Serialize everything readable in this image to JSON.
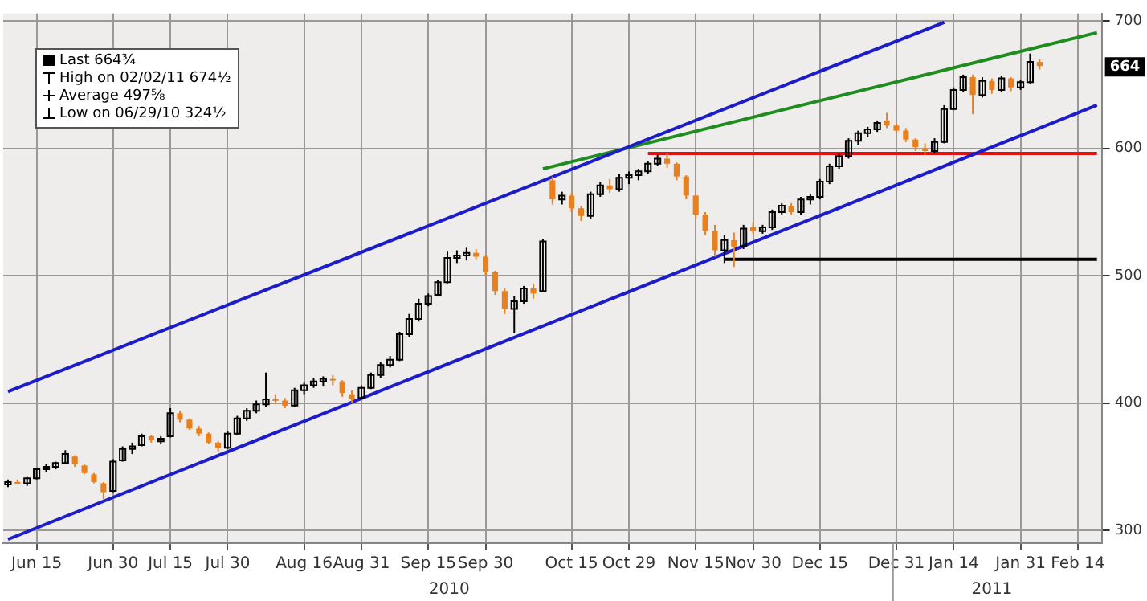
{
  "chart_data": {
    "type": "candlestick",
    "categories": [
      null,
      null,
      null,
      "Jun 15",
      null,
      null,
      null,
      null,
      null,
      null,
      null,
      "Jun 30",
      null,
      null,
      null,
      null,
      null,
      "Jul 15",
      null,
      null,
      null,
      null,
      null,
      "Jul 30",
      null,
      null,
      null,
      null,
      null,
      null,
      null,
      "Aug 16",
      null,
      null,
      null,
      null,
      null,
      "Aug 31",
      null,
      null,
      null,
      null,
      null,
      null,
      "Sep 15",
      null,
      null,
      null,
      null,
      null,
      "Sep 30",
      null,
      null,
      null,
      null,
      null,
      null,
      null,
      null,
      "Oct 15",
      null,
      null,
      null,
      null,
      null,
      "Oct 29",
      null,
      null,
      null,
      null,
      null,
      null,
      "Nov 15",
      null,
      null,
      null,
      null,
      null,
      "Nov 30",
      null,
      null,
      null,
      null,
      null,
      null,
      "Dec 15",
      null,
      null,
      null,
      null,
      null,
      null,
      null,
      "Dec 31",
      null,
      null,
      null,
      null,
      null,
      "Jan 14",
      null,
      null,
      null,
      null,
      null,
      null,
      "Jan 31",
      null,
      null,
      null,
      null,
      null,
      "Feb 14",
      null,
      null
    ],
    "ohlc": [
      [
        336,
        340,
        334,
        338
      ],
      [
        338,
        340,
        336,
        337
      ],
      [
        337,
        342,
        335,
        341
      ],
      [
        341,
        349,
        340,
        348
      ],
      [
        348,
        352,
        346,
        350
      ],
      [
        350,
        354,
        348,
        353
      ],
      [
        353,
        363,
        352,
        360
      ],
      [
        358,
        359,
        350,
        352
      ],
      [
        351,
        352,
        344,
        345
      ],
      [
        344,
        345,
        337,
        338
      ],
      [
        337,
        338,
        324.5,
        330
      ],
      [
        331,
        356,
        330,
        354
      ],
      [
        355,
        366,
        354,
        364
      ],
      [
        364,
        369,
        360,
        366
      ],
      [
        367,
        376,
        366,
        374
      ],
      [
        374,
        375,
        369,
        371
      ],
      [
        370,
        374,
        368,
        372
      ],
      [
        374,
        396,
        373,
        392
      ],
      [
        392,
        394,
        385,
        387
      ],
      [
        387,
        388,
        379,
        380
      ],
      [
        380,
        382,
        374,
        376
      ],
      [
        376,
        377,
        368,
        369
      ],
      [
        369,
        370,
        362,
        365
      ],
      [
        365,
        378,
        364,
        376
      ],
      [
        376,
        390,
        375,
        388
      ],
      [
        388,
        396,
        386,
        394
      ],
      [
        394,
        402,
        392,
        399
      ],
      [
        399,
        424,
        397,
        403
      ],
      [
        403,
        407,
        399,
        402
      ],
      [
        402,
        404,
        396,
        398
      ],
      [
        398,
        412,
        397,
        410
      ],
      [
        410,
        416,
        407,
        414
      ],
      [
        414,
        420,
        412,
        417
      ],
      [
        417,
        421,
        413,
        419
      ],
      [
        419,
        422,
        414,
        418
      ],
      [
        417,
        418,
        405,
        408
      ],
      [
        407,
        410,
        400,
        403
      ],
      [
        404,
        414,
        403,
        412
      ],
      [
        412,
        424,
        411,
        422
      ],
      [
        422,
        432,
        420,
        430
      ],
      [
        430,
        437,
        428,
        434
      ],
      [
        434,
        456,
        433,
        454
      ],
      [
        454,
        470,
        452,
        466
      ],
      [
        466,
        482,
        464,
        478
      ],
      [
        478,
        486,
        476,
        484
      ],
      [
        485,
        497,
        484,
        495
      ],
      [
        495,
        519,
        494,
        514
      ],
      [
        514,
        520,
        510,
        516
      ],
      [
        516,
        522,
        512,
        518
      ],
      [
        518,
        521,
        513,
        515
      ],
      [
        515,
        516,
        500,
        503
      ],
      [
        503,
        504,
        485,
        488
      ],
      [
        488,
        490,
        470,
        474
      ],
      [
        474,
        484,
        455,
        480
      ],
      [
        480,
        492,
        478,
        490
      ],
      [
        490,
        494,
        482,
        486
      ],
      [
        488,
        529,
        487,
        527
      ],
      [
        575,
        578,
        556,
        560
      ],
      [
        560,
        566,
        556,
        563
      ],
      [
        563,
        565,
        550,
        553
      ],
      [
        553,
        555,
        543,
        547
      ],
      [
        547,
        566,
        545,
        564
      ],
      [
        564,
        574,
        562,
        571
      ],
      [
        571,
        576,
        565,
        568
      ],
      [
        568,
        580,
        566,
        577
      ],
      [
        577,
        582,
        572,
        579
      ],
      [
        579,
        584,
        575,
        582
      ],
      [
        582,
        590,
        580,
        588
      ],
      [
        588,
        595,
        586,
        592
      ],
      [
        592,
        596,
        585,
        588
      ],
      [
        588,
        589,
        575,
        578
      ],
      [
        578,
        579,
        560,
        563
      ],
      [
        563,
        564,
        545,
        548
      ],
      [
        548,
        550,
        532,
        535
      ],
      [
        535,
        540,
        515,
        520
      ],
      [
        520,
        532,
        510,
        528
      ],
      [
        528,
        534,
        507,
        523
      ],
      [
        523,
        540,
        521,
        537
      ],
      [
        538,
        542,
        533,
        535
      ],
      [
        535,
        540,
        533,
        538
      ],
      [
        538,
        552,
        536,
        550
      ],
      [
        550,
        557,
        548,
        555
      ],
      [
        555,
        557,
        548,
        550
      ],
      [
        550,
        562,
        548,
        560
      ],
      [
        560,
        564,
        556,
        562
      ],
      [
        562,
        576,
        560,
        574
      ],
      [
        574,
        588,
        572,
        586
      ],
      [
        586,
        596,
        584,
        594
      ],
      [
        594,
        608,
        592,
        606
      ],
      [
        606,
        614,
        603,
        612
      ],
      [
        612,
        617,
        609,
        615
      ],
      [
        615,
        622,
        613,
        620
      ],
      [
        622,
        628,
        616,
        618
      ],
      [
        618,
        620,
        612,
        614
      ],
      [
        614,
        616,
        605,
        607
      ],
      [
        607,
        608,
        598,
        601
      ],
      [
        600,
        604,
        595,
        598
      ],
      [
        598,
        608,
        596,
        605
      ],
      [
        605,
        634,
        604,
        631
      ],
      [
        631,
        648,
        630,
        646
      ],
      [
        646,
        658,
        644,
        656
      ],
      [
        656,
        658,
        627,
        642
      ],
      [
        642,
        656,
        640,
        653
      ],
      [
        653,
        655,
        643,
        646
      ],
      [
        646,
        657,
        644,
        655
      ],
      [
        655,
        656,
        645,
        648
      ],
      [
        648,
        654,
        646,
        652
      ],
      [
        652,
        674.5,
        651,
        668
      ],
      [
        668,
        670,
        662,
        664.75
      ],
      null,
      null,
      null,
      null,
      null,
      null
    ],
    "colors": [
      "#000000",
      "#e8801e",
      "#000000",
      "#000000",
      "#000000",
      "#000000",
      "#000000",
      "#e8801e",
      "#e8801e",
      "#e8801e",
      "#e8801e",
      "#000000",
      "#000000",
      "#000000",
      "#000000",
      "#e8801e",
      "#000000",
      "#000000",
      "#e8801e",
      "#e8801e",
      "#e8801e",
      "#e8801e",
      "#e8801e",
      "#000000",
      "#000000",
      "#000000",
      "#000000",
      "#000000",
      "#e8801e",
      "#e8801e",
      "#000000",
      "#000000",
      "#000000",
      "#000000",
      "#e8801e",
      "#e8801e",
      "#e8801e",
      "#000000",
      "#000000",
      "#000000",
      "#000000",
      "#000000",
      "#000000",
      "#000000",
      "#000000",
      "#000000",
      "#000000",
      "#000000",
      "#000000",
      "#e8801e",
      "#e8801e",
      "#e8801e",
      "#e8801e",
      "#000000",
      "#000000",
      "#e8801e",
      "#000000",
      "#e8801e",
      "#000000",
      "#e8801e",
      "#e8801e",
      "#000000",
      "#000000",
      "#e8801e",
      "#000000",
      "#000000",
      "#000000",
      "#000000",
      "#000000",
      "#e8801e",
      "#e8801e",
      "#e8801e",
      "#e8801e",
      "#e8801e",
      "#e8801e",
      "#000000",
      "#e8801e",
      "#000000",
      "#e8801e",
      "#000000",
      "#000000",
      "#000000",
      "#e8801e",
      "#000000",
      "#000000",
      "#000000",
      "#000000",
      "#000000",
      "#000000",
      "#000000",
      "#000000",
      "#000000",
      "#e8801e",
      "#e8801e",
      "#e8801e",
      "#e8801e",
      "#e8801e",
      "#000000",
      "#000000",
      "#000000",
      "#000000",
      "#e8801e",
      "#000000",
      "#e8801e",
      "#000000",
      "#e8801e",
      "#000000",
      "#000000",
      "#e8801e",
      null,
      null,
      null,
      null,
      null,
      null
    ],
    "series": [
      {
        "type": "line",
        "color": "#1c1cc8",
        "values": [
          409,
          null,
          null,
          null,
          null,
          null,
          null,
          null,
          null,
          null,
          null,
          null,
          null,
          null,
          null,
          null,
          null,
          null,
          null,
          null,
          null,
          null,
          null,
          null,
          null,
          null,
          null,
          null,
          null,
          null,
          null,
          null,
          null,
          null,
          null,
          null,
          null,
          null,
          null,
          null,
          null,
          null,
          null,
          null,
          null,
          null,
          null,
          null,
          null,
          null,
          null,
          null,
          null,
          null,
          null,
          null,
          null,
          null,
          null,
          null,
          null,
          null,
          null,
          null,
          null,
          null,
          null,
          null,
          null,
          null,
          null,
          null,
          null,
          null,
          null,
          null,
          null,
          null,
          null,
          null,
          null,
          null,
          null,
          null,
          null,
          null,
          null,
          null,
          null,
          null,
          null,
          null,
          null,
          null,
          null,
          null,
          null,
          null,
          699,
          null,
          null,
          null,
          null,
          null,
          null,
          null,
          null,
          null,
          null,
          null,
          null,
          null,
          null,
          null,
          null
        ]
      },
      {
        "type": "line",
        "color": "#1c1cc8",
        "values": [
          293,
          null,
          null,
          null,
          null,
          null,
          null,
          null,
          null,
          null,
          null,
          null,
          null,
          null,
          null,
          null,
          null,
          null,
          null,
          null,
          null,
          null,
          null,
          null,
          null,
          null,
          null,
          null,
          null,
          null,
          null,
          null,
          null,
          null,
          null,
          null,
          null,
          null,
          null,
          null,
          null,
          null,
          null,
          null,
          null,
          null,
          null,
          null,
          null,
          null,
          null,
          null,
          null,
          null,
          null,
          null,
          null,
          null,
          null,
          null,
          null,
          null,
          null,
          null,
          null,
          null,
          null,
          null,
          null,
          null,
          null,
          null,
          null,
          null,
          null,
          null,
          null,
          null,
          null,
          null,
          null,
          null,
          null,
          null,
          null,
          null,
          null,
          null,
          null,
          null,
          null,
          null,
          null,
          null,
          null,
          null,
          null,
          null,
          null,
          null,
          null,
          null,
          null,
          null,
          null,
          null,
          null,
          null,
          null,
          null,
          null,
          null,
          null,
          null,
          634
        ]
      },
      {
        "type": "line",
        "color": "#1e8c1e",
        "values": [
          null,
          null,
          null,
          null,
          null,
          null,
          null,
          null,
          null,
          null,
          null,
          null,
          null,
          null,
          null,
          null,
          null,
          null,
          null,
          null,
          null,
          null,
          null,
          null,
          null,
          null,
          null,
          null,
          null,
          null,
          null,
          null,
          null,
          null,
          null,
          null,
          null,
          null,
          null,
          null,
          null,
          null,
          null,
          null,
          null,
          null,
          null,
          null,
          null,
          null,
          null,
          null,
          null,
          null,
          null,
          null,
          584,
          null,
          null,
          null,
          null,
          null,
          null,
          null,
          null,
          null,
          null,
          null,
          null,
          null,
          null,
          null,
          null,
          null,
          null,
          null,
          null,
          null,
          null,
          null,
          null,
          null,
          null,
          null,
          null,
          null,
          null,
          null,
          null,
          null,
          null,
          null,
          null,
          null,
          null,
          null,
          null,
          null,
          null,
          null,
          null,
          null,
          null,
          null,
          null,
          null,
          null,
          null,
          null,
          null,
          null,
          null,
          null,
          null,
          691
        ]
      },
      {
        "type": "line",
        "color": "#e01414",
        "values": [
          null,
          null,
          null,
          null,
          null,
          null,
          null,
          null,
          null,
          null,
          null,
          null,
          null,
          null,
          null,
          null,
          null,
          null,
          null,
          null,
          null,
          null,
          null,
          null,
          null,
          null,
          null,
          null,
          null,
          null,
          null,
          null,
          null,
          null,
          null,
          null,
          null,
          null,
          null,
          null,
          null,
          null,
          null,
          null,
          null,
          null,
          null,
          null,
          null,
          null,
          null,
          null,
          null,
          null,
          null,
          null,
          null,
          null,
          null,
          null,
          null,
          null,
          null,
          null,
          null,
          null,
          null,
          596,
          null,
          null,
          null,
          null,
          null,
          null,
          null,
          null,
          null,
          null,
          null,
          null,
          null,
          null,
          null,
          null,
          null,
          null,
          null,
          null,
          null,
          null,
          null,
          null,
          null,
          null,
          null,
          null,
          null,
          null,
          null,
          null,
          null,
          null,
          null,
          null,
          null,
          null,
          null,
          null,
          null,
          null,
          null,
          null,
          null,
          null,
          596
        ]
      },
      {
        "type": "line",
        "color": "#000000",
        "values": [
          null,
          null,
          null,
          null,
          null,
          null,
          null,
          null,
          null,
          null,
          null,
          null,
          null,
          null,
          null,
          null,
          null,
          null,
          null,
          null,
          null,
          null,
          null,
          null,
          null,
          null,
          null,
          null,
          null,
          null,
          null,
          null,
          null,
          null,
          null,
          null,
          null,
          null,
          null,
          null,
          null,
          null,
          null,
          null,
          null,
          null,
          null,
          null,
          null,
          null,
          null,
          null,
          null,
          null,
          null,
          null,
          null,
          null,
          null,
          null,
          null,
          null,
          null,
          null,
          null,
          null,
          null,
          null,
          null,
          null,
          null,
          null,
          null,
          null,
          null,
          513,
          null,
          null,
          null,
          null,
          null,
          null,
          null,
          null,
          null,
          null,
          null,
          null,
          null,
          null,
          null,
          null,
          null,
          null,
          null,
          null,
          null,
          null,
          null,
          null,
          null,
          null,
          null,
          null,
          null,
          null,
          null,
          null,
          null,
          null,
          null,
          null,
          null,
          null,
          513
        ]
      }
    ],
    "ylim": [
      290,
      706
    ],
    "yticks": [
      300,
      400,
      500,
      600,
      700
    ],
    "grid": true,
    "annotations": [
      "Last 664¾",
      "High on 02/02/11 674½",
      "Average 497⅝",
      "Low on 06/29/10 324½",
      "2010",
      "2011",
      {
        "text": "664",
        "y": 664
      }
    ]
  }
}
